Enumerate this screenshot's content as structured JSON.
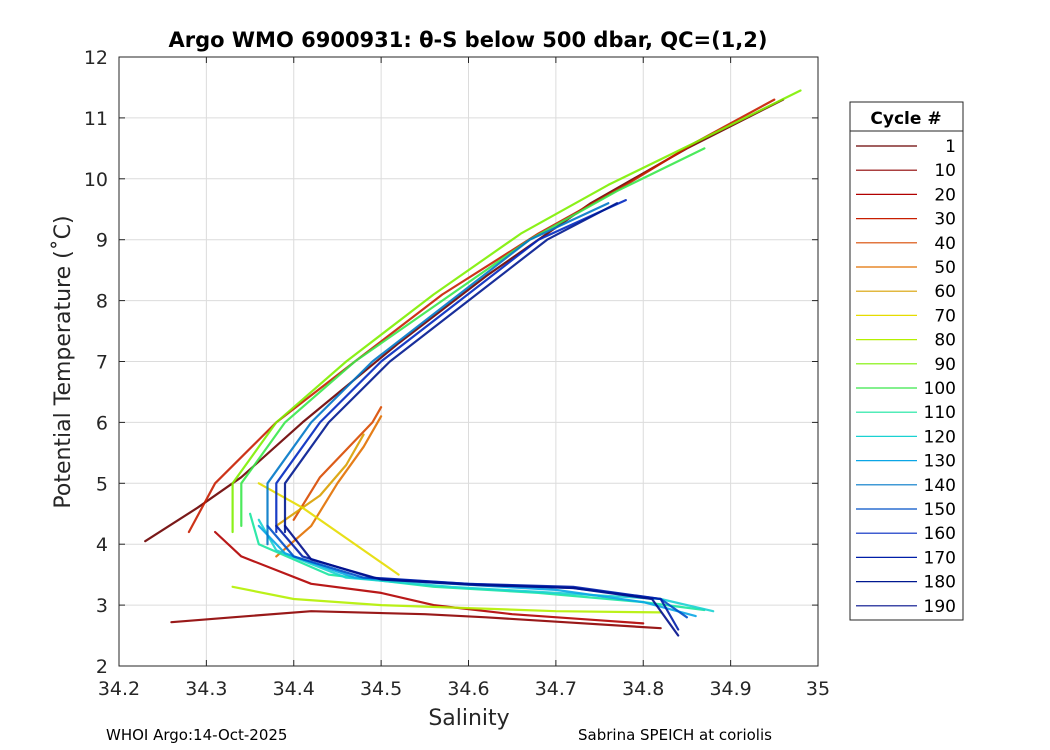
{
  "chart_data": {
    "type": "line",
    "title": "Argo WMO 6900931: θ-S below 500 dbar,  QC=(1,2)",
    "xlabel": "Salinity",
    "ylabel": "Potential Temperature (˚C)",
    "xlim": [
      34.2,
      35
    ],
    "ylim": [
      2,
      12
    ],
    "xticks": [
      "34.2",
      "34.3",
      "34.4",
      "34.5",
      "34.6",
      "34.7",
      "34.8",
      "34.9",
      "35"
    ],
    "yticks": [
      "2",
      "3",
      "4",
      "5",
      "6",
      "7",
      "8",
      "9",
      "10",
      "11",
      "12"
    ],
    "grid": true,
    "legend": {
      "title": "Cycle #",
      "position": "outside-right",
      "entries": [
        "1",
        "10",
        "20",
        "30",
        "40",
        "50",
        "60",
        "70",
        "80",
        "90",
        "100",
        "110",
        "120",
        "130",
        "140",
        "150",
        "160",
        "170",
        "180",
        "190"
      ]
    },
    "series": [
      {
        "name": "1",
        "color": "#6b0000",
        "x": [
          34.23,
          34.29,
          34.34,
          34.41,
          34.52,
          34.62,
          34.74,
          34.85,
          34.96
        ],
        "y": [
          4.05,
          4.6,
          5.1,
          6.0,
          7.3,
          8.4,
          9.6,
          10.5,
          11.3
        ]
      },
      {
        "name": "10",
        "color": "#8e0000",
        "x": [
          34.26,
          34.33,
          34.42,
          34.55,
          34.62,
          34.71,
          34.82
        ],
        "y": [
          2.72,
          2.8,
          2.9,
          2.85,
          2.8,
          2.72,
          2.62
        ]
      },
      {
        "name": "20",
        "color": "#b10000",
        "x": [
          34.31,
          34.34,
          34.42,
          34.5,
          34.56,
          34.65,
          34.75,
          34.8
        ],
        "y": [
          4.2,
          3.8,
          3.35,
          3.2,
          3.0,
          2.85,
          2.75,
          2.7
        ]
      },
      {
        "name": "30",
        "color": "#c81e00",
        "x": [
          34.28,
          34.31,
          34.38,
          34.47,
          34.57,
          34.68,
          34.78,
          34.86,
          34.95
        ],
        "y": [
          4.2,
          5.0,
          6.0,
          7.0,
          8.1,
          9.1,
          9.9,
          10.6,
          11.3
        ]
      },
      {
        "name": "40",
        "color": "#d84a00",
        "x": [
          34.4,
          34.43,
          34.47,
          34.49,
          34.5
        ],
        "y": [
          4.4,
          5.1,
          5.7,
          6.0,
          6.25
        ]
      },
      {
        "name": "50",
        "color": "#e27000",
        "x": [
          34.38,
          34.42,
          34.45,
          34.48,
          34.5
        ],
        "y": [
          3.8,
          4.3,
          5.0,
          5.6,
          6.1
        ]
      },
      {
        "name": "60",
        "color": "#d9a000",
        "x": [
          34.38,
          34.43,
          34.46,
          34.48
        ],
        "y": [
          4.3,
          4.8,
          5.3,
          5.8
        ]
      },
      {
        "name": "70",
        "color": "#e6dc00",
        "x": [
          34.36,
          34.41,
          34.46,
          34.52
        ],
        "y": [
          5.0,
          4.6,
          4.1,
          3.5
        ]
      },
      {
        "name": "80",
        "color": "#b4f000",
        "x": [
          34.33,
          34.4,
          34.5,
          34.6,
          34.7,
          34.82
        ],
        "y": [
          3.3,
          3.1,
          3.0,
          2.95,
          2.9,
          2.88
        ]
      },
      {
        "name": "90",
        "color": "#7ef000",
        "x": [
          34.33,
          34.33,
          34.38,
          34.46,
          34.56,
          34.66,
          34.76,
          34.86,
          34.98
        ],
        "y": [
          4.2,
          5.0,
          6.0,
          7.0,
          8.1,
          9.1,
          9.9,
          10.6,
          11.45
        ]
      },
      {
        "name": "100",
        "color": "#39e84a",
        "x": [
          34.34,
          34.34,
          34.39,
          34.47,
          34.57,
          34.67,
          34.77,
          34.87
        ],
        "y": [
          4.3,
          5.0,
          6.0,
          7.0,
          8.0,
          9.0,
          9.8,
          10.5
        ]
      },
      {
        "name": "110",
        "color": "#19e5a0",
        "x": [
          34.35,
          34.36,
          34.44,
          34.56,
          34.68,
          34.8,
          34.87
        ],
        "y": [
          4.5,
          4.0,
          3.5,
          3.3,
          3.2,
          3.05,
          2.92
        ]
      },
      {
        "name": "120",
        "color": "#1ad2d2",
        "x": [
          34.36,
          34.38,
          34.46,
          34.58,
          34.7,
          34.82,
          34.88
        ],
        "y": [
          4.4,
          3.9,
          3.45,
          3.3,
          3.2,
          3.1,
          2.9
        ]
      },
      {
        "name": "130",
        "color": "#0aa6e6",
        "x": [
          34.36,
          34.39,
          34.47,
          34.58,
          34.7,
          34.8,
          34.86
        ],
        "y": [
          4.3,
          3.85,
          3.45,
          3.35,
          3.25,
          3.05,
          2.82
        ]
      },
      {
        "name": "140",
        "color": "#0078c8",
        "x": [
          34.37,
          34.37,
          34.42,
          34.49,
          34.58,
          34.67,
          34.76
        ],
        "y": [
          4.0,
          5.0,
          6.0,
          7.0,
          8.0,
          9.0,
          9.6
        ]
      },
      {
        "name": "150",
        "color": "#0050c8",
        "x": [
          34.37,
          34.4,
          34.48,
          34.6,
          34.72,
          34.82,
          34.85
        ],
        "y": [
          4.3,
          3.8,
          3.45,
          3.35,
          3.28,
          3.1,
          2.8
        ]
      },
      {
        "name": "160",
        "color": "#0028c0",
        "x": [
          34.38,
          34.38,
          34.43,
          34.5,
          34.59,
          34.68,
          34.78
        ],
        "y": [
          4.2,
          5.0,
          6.0,
          7.0,
          8.0,
          9.0,
          9.65
        ]
      },
      {
        "name": "170",
        "color": "#001ea8",
        "x": [
          34.38,
          34.41,
          34.49,
          34.6,
          34.72,
          34.82,
          34.84
        ],
        "y": [
          4.3,
          3.8,
          3.45,
          3.35,
          3.3,
          3.1,
          2.6
        ]
      },
      {
        "name": "180",
        "color": "#001890",
        "x": [
          34.39,
          34.39,
          34.44,
          34.51,
          34.6,
          34.69,
          34.77
        ],
        "y": [
          4.2,
          5.0,
          6.0,
          7.0,
          8.0,
          9.0,
          9.6
        ]
      },
      {
        "name": "190",
        "color": "#000e8c",
        "x": [
          34.39,
          34.42,
          34.5,
          34.61,
          34.72,
          34.81,
          34.84
        ],
        "y": [
          4.3,
          3.75,
          3.42,
          3.33,
          3.28,
          3.1,
          2.5
        ]
      }
    ]
  },
  "footer": {
    "left": "WHOI Argo:14-Oct-2025",
    "right": "Sabrina SPEICH at coriolis"
  }
}
